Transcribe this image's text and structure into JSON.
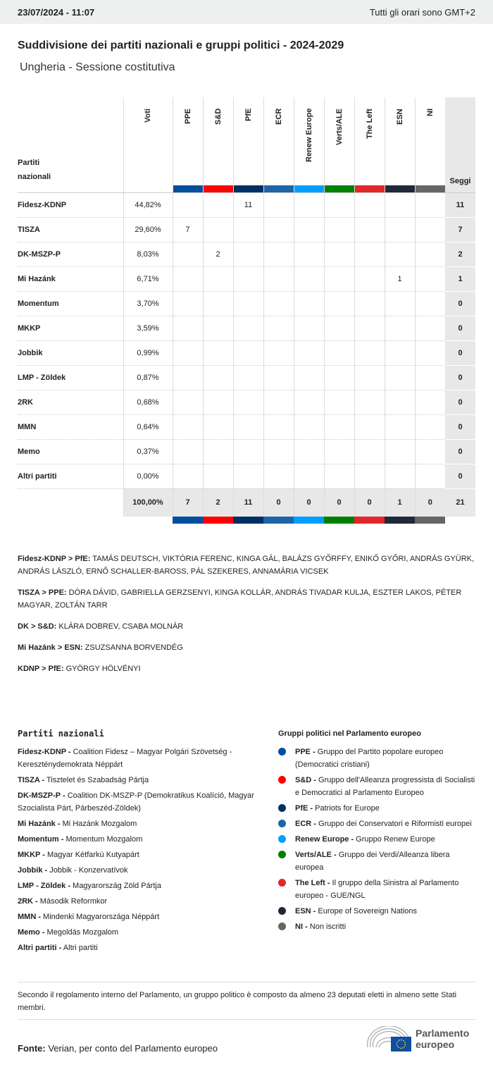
{
  "header": {
    "datetime": "23/07/2024 - 11:07",
    "timezone": "Tutti gli orari sono GMT+2"
  },
  "title": "Suddivisione dei partiti nazionali e gruppi politici - 2024-2029",
  "subtitle": "Ungheria - Sessione costitutiva",
  "table": {
    "party_header": [
      "Partiti",
      "nazionali"
    ],
    "votes_header": "Voti",
    "seats_header": "Seggi",
    "groups": [
      {
        "name": "PPE",
        "color": "#004f9f"
      },
      {
        "name": "S&D",
        "color": "#ff0000"
      },
      {
        "name": "PfE",
        "color": "#003063"
      },
      {
        "name": "ECR",
        "color": "#1c65a6"
      },
      {
        "name": "Renew Europe",
        "color": "#009ffe"
      },
      {
        "name": "Verts/ALE",
        "color": "#008000"
      },
      {
        "name": "The Left",
        "color": "#e3262a"
      },
      {
        "name": "ESN",
        "color": "#20293a"
      },
      {
        "name": "NI",
        "color": "#666666"
      }
    ],
    "rows": [
      {
        "party": "Fidesz-KDNP",
        "votes": "44,82%",
        "seats": [
          "",
          "",
          "11",
          "",
          "",
          "",
          "",
          "",
          ""
        ],
        "total": "11"
      },
      {
        "party": "TISZA",
        "votes": "29,60%",
        "seats": [
          "7",
          "",
          "",
          "",
          "",
          "",
          "",
          "",
          ""
        ],
        "total": "7"
      },
      {
        "party": "DK-MSZP-P",
        "votes": "8,03%",
        "seats": [
          "",
          "2",
          "",
          "",
          "",
          "",
          "",
          "",
          ""
        ],
        "total": "2"
      },
      {
        "party": "Mi Hazánk",
        "votes": "6,71%",
        "seats": [
          "",
          "",
          "",
          "",
          "",
          "",
          "",
          "1",
          ""
        ],
        "total": "1"
      },
      {
        "party": "Momentum",
        "votes": "3,70%",
        "seats": [
          "",
          "",
          "",
          "",
          "",
          "",
          "",
          "",
          ""
        ],
        "total": "0"
      },
      {
        "party": "MKKP",
        "votes": "3,59%",
        "seats": [
          "",
          "",
          "",
          "",
          "",
          "",
          "",
          "",
          ""
        ],
        "total": "0"
      },
      {
        "party": "Jobbik",
        "votes": "0,99%",
        "seats": [
          "",
          "",
          "",
          "",
          "",
          "",
          "",
          "",
          ""
        ],
        "total": "0"
      },
      {
        "party": "LMP - Zöldek",
        "votes": "0,87%",
        "seats": [
          "",
          "",
          "",
          "",
          "",
          "",
          "",
          "",
          ""
        ],
        "total": "0"
      },
      {
        "party": "2RK",
        "votes": "0,68%",
        "seats": [
          "",
          "",
          "",
          "",
          "",
          "",
          "",
          "",
          ""
        ],
        "total": "0"
      },
      {
        "party": "MMN",
        "votes": "0,64%",
        "seats": [
          "",
          "",
          "",
          "",
          "",
          "",
          "",
          "",
          ""
        ],
        "total": "0"
      },
      {
        "party": "Memo",
        "votes": "0,37%",
        "seats": [
          "",
          "",
          "",
          "",
          "",
          "",
          "",
          "",
          ""
        ],
        "total": "0"
      },
      {
        "party": "Altri partiti",
        "votes": "0,00%",
        "seats": [
          "",
          "",
          "",
          "",
          "",
          "",
          "",
          "",
          ""
        ],
        "total": "0"
      }
    ],
    "totals": {
      "votes": "100,00%",
      "seats": [
        "7",
        "2",
        "11",
        "0",
        "0",
        "0",
        "0",
        "1",
        "0"
      ],
      "total": "21"
    }
  },
  "notes": [
    {
      "label": "Fidesz-KDNP > PfE:",
      "text": " TAMÁS DEUTSCH, VIKTÓRIA FERENC, KINGA GÁL, BALÁZS GYŐRFFY, ENIKŐ GYŐRI, ANDRÁS GYÜRK, ANDRÁS LÁSZLÓ, ERNŐ SCHALLER-BAROSS, PÁL SZEKERES, ANNAMÁRIA VICSEK"
    },
    {
      "label": "TISZA > PPE:",
      "text": " DÓRA DÁVID, GABRIELLA GERZSENYI, KINGA KOLLÁR, ANDRÁS TIVADAR KULJA, ESZTER LAKOS, PÉTER MAGYAR, ZOLTÁN TARR"
    },
    {
      "label": "DK > S&D:",
      "text": " KLÁRA DOBREV, CSABA MOLNÁR"
    },
    {
      "label": "Mi Hazánk > ESN:",
      "text": " ZSUZSANNA BORVENDÉG"
    },
    {
      "label": "KDNP > PfE:",
      "text": " GYÖRGY HÖLVÉNYI"
    }
  ],
  "legend_parties": {
    "title": "Partiti nazionali",
    "items": [
      {
        "abbr": "Fidesz-KDNP -",
        "name": " Coalition Fidesz – Magyar Polgári Szövetség - Kereszténydemokrata Néppárt"
      },
      {
        "abbr": "TISZA -",
        "name": " Tisztelet és Szabadság Pártja"
      },
      {
        "abbr": "DK-MSZP-P -",
        "name": " Coalition DK-MSZP-P (Demokratikus Koalíció, Magyar Szocialista Párt, Párbeszéd-Zöldek)"
      },
      {
        "abbr": "Mi Hazánk -",
        "name": " Mi Hazánk Mozgalom"
      },
      {
        "abbr": "Momentum -",
        "name": " Momentum Mozgalom"
      },
      {
        "abbr": "MKKP -",
        "name": " Magyar Kétfarkú Kutyapárt"
      },
      {
        "abbr": "Jobbik -",
        "name": " Jobbik - Konzervatívok"
      },
      {
        "abbr": "LMP - Zöldek -",
        "name": " Magyarország Zöld Pártja"
      },
      {
        "abbr": "2RK -",
        "name": " Második Reformkor"
      },
      {
        "abbr": "MMN -",
        "name": " Mindenki Magyarországa Néppárt"
      },
      {
        "abbr": "Memo -",
        "name": " Megoldás Mozgalom"
      },
      {
        "abbr": "Altri partiti -",
        "name": " Altri partiti"
      }
    ]
  },
  "legend_groups": {
    "title": "Gruppi politici nel Parlamento europeo",
    "items": [
      {
        "abbr": "PPE -",
        "name": " Gruppo del Partito popolare europeo (Democratici cristiani)",
        "color": "#004f9f"
      },
      {
        "abbr": "S&D -",
        "name": " Gruppo dell'Alleanza progressista di Socialisti e Democratici al Parlamento Europeo",
        "color": "#ff0000"
      },
      {
        "abbr": "PfE -",
        "name": " Patriots for Europe",
        "color": "#003063"
      },
      {
        "abbr": "ECR -",
        "name": " Gruppo dei Conservatori e Riformisti europei",
        "color": "#1c65a6"
      },
      {
        "abbr": "Renew Europe -",
        "name": " Gruppo Renew Europe",
        "color": "#009ffe"
      },
      {
        "abbr": "Verts/ALE -",
        "name": " Gruppo dei Verdi/Alleanza libera europea",
        "color": "#008000"
      },
      {
        "abbr": "The Left -",
        "name": " Il gruppo della Sinistra al Parlamento europeo - GUE/NGL",
        "color": "#e3262a"
      },
      {
        "abbr": "ESN -",
        "name": " Europe of Sovereign Nations",
        "color": "#20293a"
      },
      {
        "abbr": "NI -",
        "name": " Non iscritti",
        "color": "#666666"
      }
    ]
  },
  "footnote": "Secondo il regolamento interno del Parlamento, un gruppo politico è composto da almeno 23 deputati eletti in almeno sette Stati membri.",
  "source": {
    "label": "Fonte:",
    "text": " Verian, per conto del Parlamento europeo"
  },
  "logo": {
    "line1": "Parlamento",
    "line2": "europeo"
  }
}
